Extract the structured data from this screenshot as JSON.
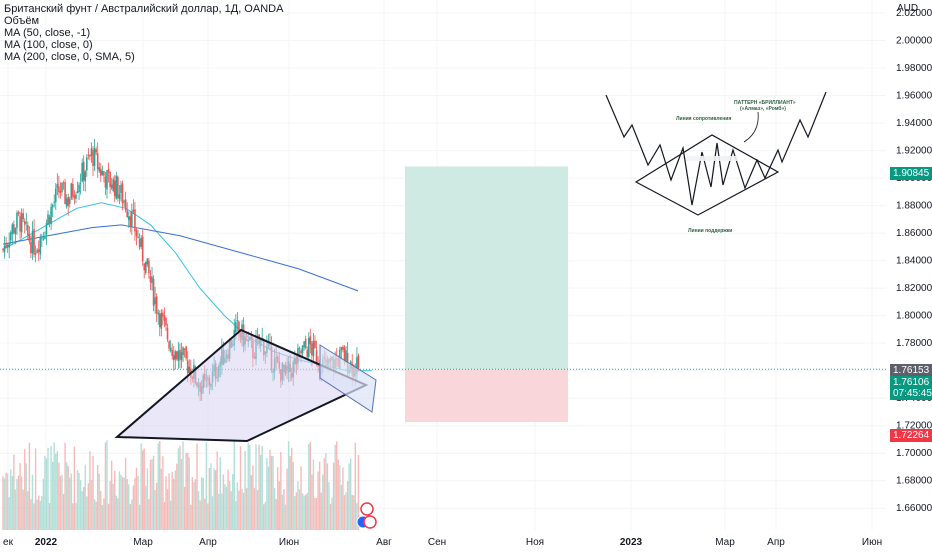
{
  "legend": {
    "title": "Британский фунт / Австралийский доллар, 1Д, OANDA",
    "volume": "Объём",
    "ma1": "MA (50, close, -1)",
    "ma2": "MA (100, close, 0)",
    "ma3": "MA (200, close, 0, SMA, 5)"
  },
  "currency": "AUD",
  "price_tags": {
    "target": "1.90845",
    "current_a": "1.76153",
    "current_b": "1.76106",
    "countdown": "07:45:45",
    "stop": "1.72264"
  },
  "diagram": {
    "title_line1": "ПАТТЕРН «БРИЛЛИАНТ»",
    "title_line2": "(«Алмаз», «Ромб»)",
    "resistance_label": "Линия сопротивления",
    "support_label": "Линии поддержки"
  },
  "colors": {
    "bull": "#26a69a",
    "bear": "#ef5350",
    "ma_fast": "#2ec4e6",
    "ma_slow": "#3a6fd8",
    "target_zone": "#cfeae3",
    "stop_zone": "#f9d6d9",
    "triangle_fill": "#d9d3f2",
    "rising_channel_fill": "#dbe3f7"
  },
  "chart_data": {
    "type": "candlestick",
    "symbol": "GBPAUD",
    "timeframe": "1Д",
    "ylim": [
      1.65,
      2.02
    ],
    "y_ticks": [
      "1.66000",
      "1.68000",
      "1.70000",
      "1.72000",
      "1.74000",
      "1.76000",
      "1.78000",
      "1.80000",
      "1.82000",
      "1.84000",
      "1.86000",
      "1.88000",
      "1.90000",
      "1.92000",
      "1.94000",
      "1.96000",
      "1.98000",
      "2.00000",
      "2.02000"
    ],
    "x_labels": [
      "ек",
      "2022",
      "Мар",
      "Апр",
      "Июн",
      "Авг",
      "Сен",
      "Ноя",
      "2023",
      "Мар",
      "Апр",
      "Июн"
    ],
    "x_label_bold": [
      "2022",
      "2023"
    ],
    "price_path": [
      1.848,
      1.862,
      1.87,
      1.858,
      1.85,
      1.862,
      1.878,
      1.892,
      1.884,
      1.895,
      1.905,
      1.918,
      1.906,
      1.898,
      1.894,
      1.884,
      1.87,
      1.85,
      1.83,
      1.808,
      1.79,
      1.776,
      1.77,
      1.764,
      1.753,
      1.748,
      1.756,
      1.768,
      1.778,
      1.79,
      1.782,
      1.774,
      1.782,
      1.771,
      1.762,
      1.756,
      1.763,
      1.774,
      1.778,
      1.768,
      1.762,
      1.766,
      1.771,
      1.765,
      1.76
    ],
    "ma_lines": [
      {
        "name": "MA (50, close, -1)",
        "values": [
          1.848,
          1.858,
          1.868,
          1.878,
          1.882,
          1.878,
          1.866,
          1.846,
          1.82,
          1.8,
          1.784,
          1.774,
          1.768,
          1.764,
          1.76,
          1.76
        ]
      },
      {
        "name": "MA (200, close, 0, SMA, 5)",
        "values": [
          1.852,
          1.856,
          1.86,
          1.864,
          1.866,
          1.862,
          1.858,
          1.852,
          1.846,
          1.84,
          1.834,
          1.826,
          1.818
        ]
      }
    ],
    "position": {
      "entry": 1.76106,
      "target": 1.90845,
      "stop": 1.72264
    },
    "annotations": [
      "symmetrical triangle",
      "rising channel",
      "diamond pattern illustration"
    ]
  }
}
